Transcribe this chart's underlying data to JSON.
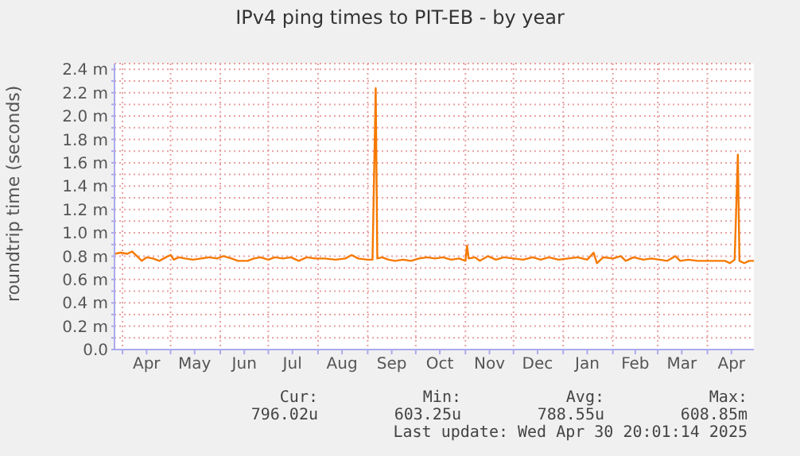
{
  "chart_data": {
    "type": "line",
    "title": "IPv4 ping times to PIT-EB - by year",
    "ylabel": "roundtrip time (seconds)",
    "x": [
      "2024-03-27",
      "2024-03-31",
      "2024-04-04",
      "2024-04-07",
      "2024-04-10",
      "2024-04-13",
      "2024-04-16",
      "2024-04-20",
      "2024-04-24",
      "2024-04-28",
      "2024-05-01",
      "2024-05-03",
      "2024-05-06",
      "2024-05-10",
      "2024-05-15",
      "2024-05-20",
      "2024-05-25",
      "2024-05-30",
      "2024-06-03",
      "2024-06-08",
      "2024-06-12",
      "2024-06-18",
      "2024-06-22",
      "2024-06-26",
      "2024-07-01",
      "2024-07-05",
      "2024-07-10",
      "2024-07-15",
      "2024-07-20",
      "2024-07-25",
      "2024-07-30",
      "2024-08-05",
      "2024-08-12",
      "2024-08-18",
      "2024-08-22",
      "2024-08-26",
      "2024-09-01",
      "2024-09-04",
      "2024-09-06",
      "2024-09-07",
      "2024-09-10",
      "2024-09-14",
      "2024-09-18",
      "2024-09-23",
      "2024-09-28",
      "2024-10-03",
      "2024-10-08",
      "2024-10-13",
      "2024-10-18",
      "2024-10-23",
      "2024-10-28",
      "2024-11-01",
      "2024-11-02",
      "2024-11-03",
      "2024-11-07",
      "2024-11-10",
      "2024-11-15",
      "2024-11-20",
      "2024-11-25",
      "2024-12-01",
      "2024-12-07",
      "2024-12-13",
      "2024-12-18",
      "2024-12-23",
      "2024-12-29",
      "2025-01-04",
      "2025-01-10",
      "2025-01-16",
      "2025-01-20",
      "2025-01-22",
      "2025-01-26",
      "2025-02-01",
      "2025-02-06",
      "2025-02-09",
      "2025-02-14",
      "2025-02-20",
      "2025-02-25",
      "2025-03-02",
      "2025-03-07",
      "2025-03-12",
      "2025-03-15",
      "2025-03-20",
      "2025-03-26",
      "2025-04-01",
      "2025-04-08",
      "2025-04-12",
      "2025-04-15",
      "2025-04-18",
      "2025-04-20",
      "2025-04-21",
      "2025-04-24",
      "2025-04-27",
      "2025-04-30"
    ],
    "series": [
      {
        "color": "#f57900",
        "values": [
          0.82,
          0.83,
          0.82,
          0.84,
          0.8,
          0.76,
          0.79,
          0.78,
          0.76,
          0.79,
          0.81,
          0.77,
          0.79,
          0.78,
          0.77,
          0.78,
          0.79,
          0.78,
          0.8,
          0.78,
          0.76,
          0.76,
          0.78,
          0.79,
          0.77,
          0.79,
          0.78,
          0.79,
          0.76,
          0.79,
          0.78,
          0.78,
          0.77,
          0.78,
          0.81,
          0.78,
          0.77,
          0.77,
          2.24,
          0.78,
          0.79,
          0.77,
          0.76,
          0.77,
          0.76,
          0.78,
          0.79,
          0.78,
          0.79,
          0.77,
          0.78,
          0.76,
          0.89,
          0.78,
          0.79,
          0.76,
          0.8,
          0.77,
          0.79,
          0.78,
          0.77,
          0.79,
          0.77,
          0.79,
          0.77,
          0.78,
          0.79,
          0.77,
          0.83,
          0.74,
          0.79,
          0.78,
          0.8,
          0.76,
          0.79,
          0.77,
          0.78,
          0.77,
          0.76,
          0.8,
          0.76,
          0.77,
          0.76,
          0.76,
          0.76,
          0.76,
          0.74,
          0.77,
          1.67,
          0.76,
          0.74,
          0.76,
          0.76
        ]
      }
    ],
    "xlim": [
      "2024-03-27",
      "2025-04-30"
    ],
    "xticks": [
      {
        "value": "2024-04-01",
        "label": null
      },
      {
        "value": "2024-04-16",
        "label": "Apr"
      },
      {
        "value": "2024-05-01",
        "label": null
      },
      {
        "value": "2024-05-16",
        "label": "May"
      },
      {
        "value": "2024-06-01",
        "label": null
      },
      {
        "value": "2024-06-16",
        "label": "Jun"
      },
      {
        "value": "2024-07-01",
        "label": null
      },
      {
        "value": "2024-07-16",
        "label": "Jul"
      },
      {
        "value": "2024-08-01",
        "label": null
      },
      {
        "value": "2024-08-16",
        "label": "Aug"
      },
      {
        "value": "2024-09-01",
        "label": null
      },
      {
        "value": "2024-09-16",
        "label": "Sep"
      },
      {
        "value": "2024-10-01",
        "label": null
      },
      {
        "value": "2024-10-16",
        "label": "Oct"
      },
      {
        "value": "2024-11-01",
        "label": null
      },
      {
        "value": "2024-11-16",
        "label": "Nov"
      },
      {
        "value": "2024-12-01",
        "label": null
      },
      {
        "value": "2024-12-16",
        "label": "Dec"
      },
      {
        "value": "2025-01-01",
        "label": null
      },
      {
        "value": "2025-01-16",
        "label": "Jan"
      },
      {
        "value": "2025-02-01",
        "label": null
      },
      {
        "value": "2025-02-15",
        "label": "Feb"
      },
      {
        "value": "2025-03-01",
        "label": null
      },
      {
        "value": "2025-03-16",
        "label": "Mar"
      },
      {
        "value": "2025-04-01",
        "label": null
      },
      {
        "value": "2025-04-16",
        "label": "Apr"
      }
    ],
    "ylim": [
      0,
      2.45
    ],
    "yticks": [
      {
        "value": 0,
        "label": "0.0"
      },
      {
        "value": 0.1,
        "label": null
      },
      {
        "value": 0.2,
        "label": "0.2 m"
      },
      {
        "value": 0.3,
        "label": null
      },
      {
        "value": 0.4,
        "label": "0.4 m"
      },
      {
        "value": 0.5,
        "label": null
      },
      {
        "value": 0.6,
        "label": "0.6 m"
      },
      {
        "value": 0.7,
        "label": null
      },
      {
        "value": 0.8,
        "label": "0.8 m"
      },
      {
        "value": 0.9,
        "label": null
      },
      {
        "value": 1.0,
        "label": "1.0 m"
      },
      {
        "value": 1.1,
        "label": null
      },
      {
        "value": 1.2,
        "label": "1.2 m"
      },
      {
        "value": 1.3,
        "label": null
      },
      {
        "value": 1.4,
        "label": "1.4 m"
      },
      {
        "value": 1.5,
        "label": null
      },
      {
        "value": 1.6,
        "label": "1.6 m"
      },
      {
        "value": 1.7,
        "label": null
      },
      {
        "value": 1.8,
        "label": "1.8 m"
      },
      {
        "value": 1.9,
        "label": null
      },
      {
        "value": 2.0,
        "label": "2.0 m"
      },
      {
        "value": 2.1,
        "label": null
      },
      {
        "value": 2.2,
        "label": "2.2 m"
      },
      {
        "value": 2.3,
        "label": null
      },
      {
        "value": 2.4,
        "label": "2.4 m"
      }
    ],
    "grid": true,
    "marker": "none",
    "line_style": "solid",
    "annotations": [
      "Cur:",
      "796.02u",
      "Min:",
      "603.25u",
      "Avg:",
      "788.55u",
      "Max:",
      "608.85m",
      "Last update: Wed Apr 30 20:01:14 2025"
    ]
  }
}
